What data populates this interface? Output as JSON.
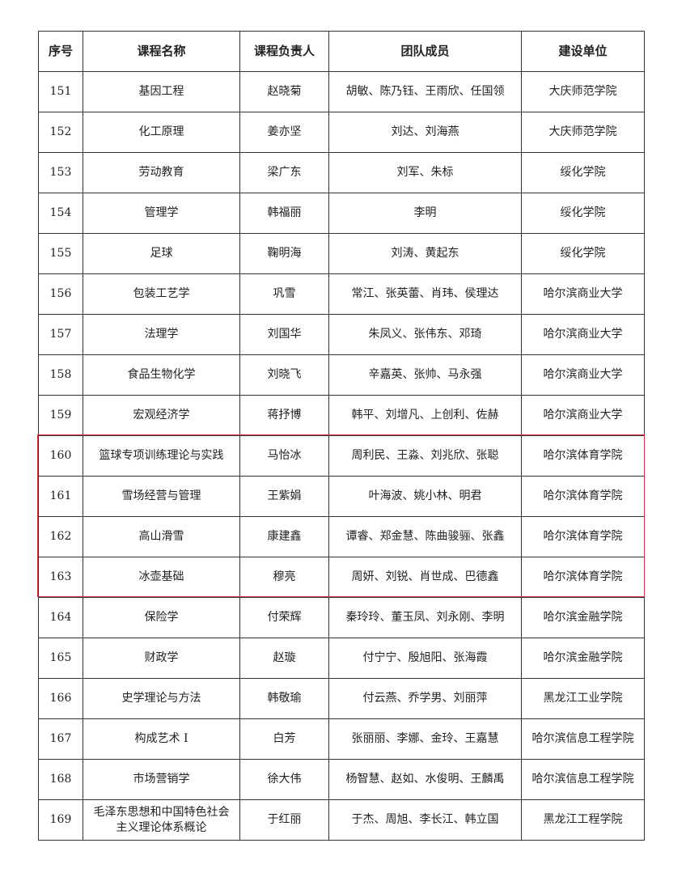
{
  "headers": [
    "序号",
    "课程名称",
    "课程负责人",
    "团队成员",
    "建设单位"
  ],
  "highlight_color": "#d9303a",
  "highlighted_rows": [
    "160",
    "161",
    "162",
    "163"
  ],
  "rows": [
    [
      "151",
      "基因工程",
      "赵晓菊",
      "胡敏、陈乃钰、王雨欣、任国领",
      "大庆师范学院"
    ],
    [
      "152",
      "化工原理",
      "姜亦坚",
      "刘达、刘海燕",
      "大庆师范学院"
    ],
    [
      "153",
      "劳动教育",
      "梁广东",
      "刘军、朱标",
      "绥化学院"
    ],
    [
      "154",
      "管理学",
      "韩福丽",
      "李明",
      "绥化学院"
    ],
    [
      "155",
      "足球",
      "鞠明海",
      "刘涛、黄起东",
      "绥化学院"
    ],
    [
      "156",
      "包装工艺学",
      "巩雪",
      "常江、张英蕾、肖玮、侯理达",
      "哈尔滨商业大学"
    ],
    [
      "157",
      "法理学",
      "刘国华",
      "朱凤义、张伟东、邓琦",
      "哈尔滨商业大学"
    ],
    [
      "158",
      "食品生物化学",
      "刘晓飞",
      "辛嘉英、张帅、马永强",
      "哈尔滨商业大学"
    ],
    [
      "159",
      "宏观经济学",
      "蒋抒博",
      "韩平、刘增凡、上创利、佐赫",
      "哈尔滨商业大学"
    ],
    [
      "160",
      "篮球专项训练理论与实践",
      "马怡冰",
      "周利民、王淼、刘兆欣、张聪",
      "哈尔滨体育学院"
    ],
    [
      "161",
      "雪场经营与管理",
      "王紫娟",
      "叶海波、姚小林、明君",
      "哈尔滨体育学院"
    ],
    [
      "162",
      "高山滑雪",
      "康建鑫",
      "谭睿、郑金慧、陈曲骏骊、张鑫",
      "哈尔滨体育学院"
    ],
    [
      "163",
      "冰壶基础",
      "穆亮",
      "周妍、刘锐、肖世成、巴德鑫",
      "哈尔滨体育学院"
    ],
    [
      "164",
      "保险学",
      "付荣辉",
      "秦玲玲、董玉凤、刘永刚、李明",
      "哈尔滨金融学院"
    ],
    [
      "165",
      "财政学",
      "赵璇",
      "付宁宁、殷旭阳、张海霞",
      "哈尔滨金融学院"
    ],
    [
      "166",
      "史学理论与方法",
      "韩敬瑜",
      "付云燕、乔学男、刘丽萍",
      "黑龙江工业学院"
    ],
    [
      "167",
      "构成艺术 I",
      "白芳",
      "张丽丽、李娜、金玲、王嘉慧",
      "哈尔滨信息工程学院"
    ],
    [
      "168",
      "市场营销学",
      "徐大伟",
      "杨智慧、赵如、水俊明、王麟禹",
      "哈尔滨信息工程学院"
    ],
    [
      "169",
      "毛泽东思想和中国特色社会主义理论体系概论",
      "于红丽",
      "于杰、周旭、李长江、韩立国",
      "黑龙江工程学院"
    ]
  ]
}
